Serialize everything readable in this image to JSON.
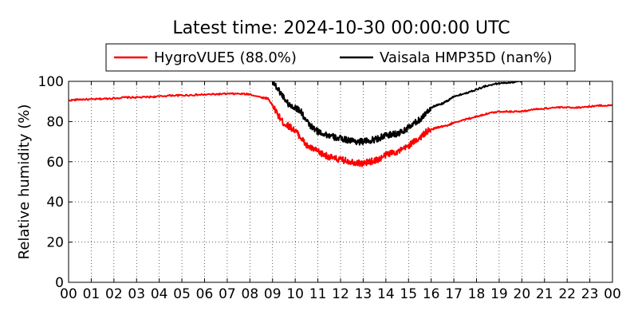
{
  "chart_data": {
    "type": "line",
    "title": "Latest time: 2024-10-30 00:00:00 UTC",
    "xlabel": "",
    "ylabel": "Relative humidity (%)",
    "xlim": [
      0,
      24
    ],
    "ylim": [
      0,
      100
    ],
    "x_ticks": [
      "00",
      "01",
      "02",
      "03",
      "04",
      "05",
      "06",
      "07",
      "08",
      "09",
      "10",
      "11",
      "12",
      "13",
      "14",
      "15",
      "16",
      "17",
      "18",
      "19",
      "20",
      "21",
      "22",
      "23",
      "00"
    ],
    "y_ticks": [
      0,
      20,
      40,
      60,
      80,
      100
    ],
    "grid": true,
    "legend_position": "top-center",
    "series": [
      {
        "name": "HygroVUE5 (88.0%)",
        "color": "#ff0000",
        "x": [
          0,
          0.5,
          1,
          1.5,
          2,
          2.5,
          3,
          3.5,
          4,
          4.5,
          5,
          5.5,
          6,
          6.5,
          7,
          7.5,
          8,
          8.5,
          8.8,
          9,
          9.25,
          9.5,
          9.75,
          10,
          10.25,
          10.5,
          10.75,
          11,
          11.25,
          11.5,
          11.75,
          12,
          12.25,
          12.5,
          12.75,
          13,
          13.25,
          13.5,
          13.75,
          14,
          14.25,
          14.5,
          14.75,
          15,
          15.25,
          15.5,
          15.75,
          16,
          16.25,
          16.5,
          16.75,
          17,
          17.5,
          18,
          18.5,
          19,
          19.5,
          20,
          20.5,
          21,
          21.5,
          22,
          22.5,
          23,
          23.5,
          24
        ],
        "y": [
          90.5,
          91,
          91,
          91.3,
          91.6,
          92,
          92,
          92.2,
          92.5,
          93,
          93,
          93.2,
          93.4,
          93.6,
          93.8,
          93.8,
          93.6,
          92,
          91.5,
          88,
          83,
          79,
          77.5,
          75.5,
          72,
          68,
          66.5,
          65,
          63.5,
          62.5,
          61.5,
          61,
          60.5,
          60,
          59.5,
          59,
          60,
          60.5,
          61.5,
          63.5,
          64.5,
          65,
          66,
          68,
          70,
          72,
          74.5,
          76,
          77,
          77.5,
          78,
          79.5,
          81,
          82.5,
          84,
          85,
          85,
          85,
          86,
          86.5,
          87,
          87,
          87,
          87.5,
          88,
          88
        ]
      },
      {
        "name": "Vaisala HMP35D (nan%)",
        "color": "#000000",
        "x": [
          9,
          9.25,
          9.5,
          9.75,
          10,
          10.25,
          10.5,
          10.75,
          11,
          11.25,
          11.5,
          11.75,
          12,
          12.25,
          12.5,
          12.75,
          13,
          13.25,
          13.5,
          13.75,
          14,
          14.25,
          14.5,
          14.75,
          15,
          15.25,
          15.5,
          15.75,
          16,
          16.25,
          16.5,
          16.75,
          17,
          17.5,
          18,
          18.5,
          19,
          19.5,
          20
        ],
        "y": [
          100,
          96,
          92,
          88,
          87,
          85,
          80,
          77,
          75,
          74,
          73,
          72,
          71.5,
          71,
          70.5,
          70,
          70,
          70.5,
          71,
          72,
          73,
          73.5,
          74,
          75,
          77,
          79,
          81,
          84,
          87,
          88,
          89,
          90.5,
          92.5,
          94,
          96,
          98,
          99,
          99.5,
          100
        ]
      }
    ]
  }
}
